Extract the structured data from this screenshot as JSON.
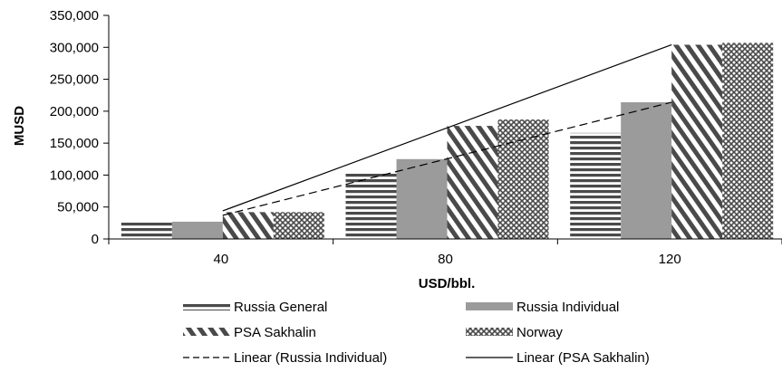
{
  "chart_data": {
    "type": "bar",
    "categories": [
      "40",
      "80",
      "120"
    ],
    "xlabel": "USD/bbl.",
    "ylabel": "MUSD",
    "ylim": [
      0,
      350000
    ],
    "yticks": [
      "0",
      "50,000",
      "100,000",
      "150,000",
      "200,000",
      "250,000",
      "300,000",
      "350,000"
    ],
    "series": [
      {
        "name": "Russia General",
        "pattern": "horizontal-stripes",
        "values": [
          26000,
          103000,
          166000
        ]
      },
      {
        "name": "Russia Individual",
        "pattern": "solid-gray",
        "values": [
          27000,
          125000,
          214000
        ]
      },
      {
        "name": "PSA Sakhalin",
        "pattern": "diagonal-stripes",
        "values": [
          42000,
          177000,
          304000
        ]
      },
      {
        "name": "Norway",
        "pattern": "crosshatch",
        "values": [
          42000,
          187000,
          307000
        ]
      }
    ],
    "trendlines": [
      {
        "name": "Linear (Russia Individual)",
        "style": "dashed",
        "from_category": 0,
        "to_category": 2,
        "values": [
          37000,
          214000
        ]
      },
      {
        "name": "Linear (PSA Sakhalin)",
        "style": "solid",
        "from_category": 0,
        "to_category": 2,
        "values": [
          44000,
          304000
        ]
      }
    ],
    "legend_position": "bottom",
    "colors": {
      "bar_gray": "#9b9b9b",
      "pattern_dark": "#4a4a4a",
      "axis": "#000000"
    }
  }
}
